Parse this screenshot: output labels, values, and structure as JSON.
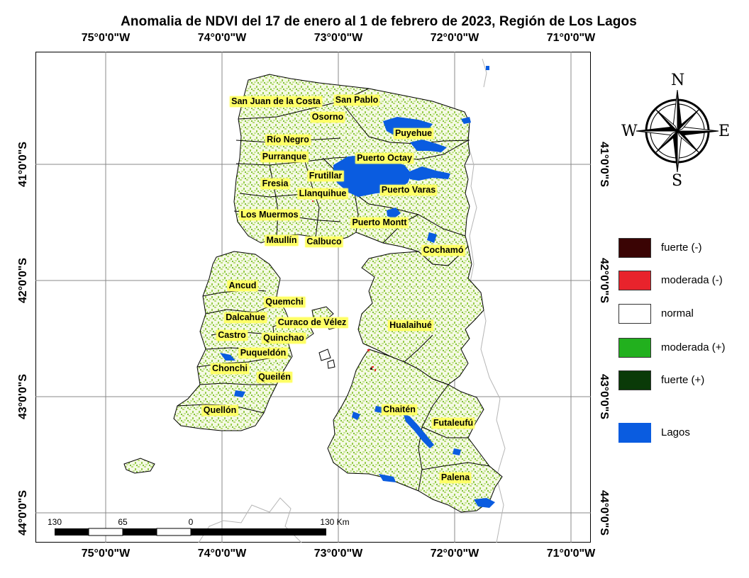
{
  "title": "Anomalia de NDVI del 17 de enero al 1 de febrero de 2023, Región de Los Lagos",
  "longitudes": [
    "75°0'0\"W",
    "74°0'0\"W",
    "73°0'0\"W",
    "72°0'0\"W",
    "71°0'0\"W"
  ],
  "latitudes": [
    "41°0'0\"S",
    "42°0'0\"S",
    "43°0'0\"S",
    "44°0'0\"S"
  ],
  "comunas": [
    "San Juan de la Costa",
    "San Pablo",
    "Osorno",
    "Puyehue",
    "Río Negro",
    "Purranque",
    "Puerto Octay",
    "Frutillar",
    "Fresia",
    "Llanquihue",
    "Puerto Varas",
    "Los Muermos",
    "Puerto Montt",
    "Maullín",
    "Calbuco",
    "Cochamó",
    "Ancud",
    "Quemchi",
    "Dalcahue",
    "Curaco de Vélez",
    "Hualaihué",
    "Castro",
    "Quinchao",
    "Puqueldón",
    "Chonchi",
    "Queilén",
    "Quellón",
    "Chaitén",
    "Futaleufú",
    "Palena"
  ],
  "compass": {
    "n": "N",
    "s": "S",
    "e": "E",
    "w": "W"
  },
  "legend": [
    {
      "label": "fuerte (-)",
      "color": "#3a0404"
    },
    {
      "label": "moderada (-)",
      "color": "#e8232c"
    },
    {
      "label": "normal",
      "color": "#ffffff"
    },
    {
      "label": "moderada (+)",
      "color": "#22b01e"
    },
    {
      "label": "fuerte (+)",
      "color": "#0a3a08"
    },
    {
      "label": "Lagos",
      "color": "#0a5ce0"
    }
  ],
  "scale": {
    "ticks": [
      "130",
      "65",
      "0",
      "130 Km"
    ]
  }
}
